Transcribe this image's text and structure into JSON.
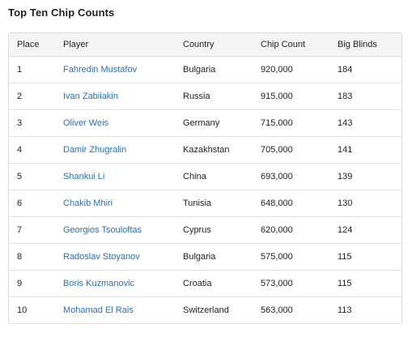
{
  "title": "Top Ten Chip Counts",
  "table": {
    "headers": {
      "place": "Place",
      "player": "Player",
      "country": "Country",
      "chips": "Chip Count",
      "bb": "Big Blinds"
    },
    "rows": [
      {
        "place": "1",
        "player": "Fahredin Mustafov",
        "country": "Bulgaria",
        "chips": "920,000",
        "bb": "184"
      },
      {
        "place": "2",
        "player": "Ivan Zabiiakin",
        "country": "Russia",
        "chips": "915,000",
        "bb": "183"
      },
      {
        "place": "3",
        "player": "Oliver Weis",
        "country": "Germany",
        "chips": "715,000",
        "bb": "143"
      },
      {
        "place": "4",
        "player": "Damir Zhugralin",
        "country": "Kazakhstan",
        "chips": "705,000",
        "bb": "141"
      },
      {
        "place": "5",
        "player": "Shankui Li",
        "country": "China",
        "chips": "693,000",
        "bb": "139"
      },
      {
        "place": "6",
        "player": "Chakib Mhiri",
        "country": "Tunisia",
        "chips": "648,000",
        "bb": "130"
      },
      {
        "place": "7",
        "player": "Georgios Tsouloftas",
        "country": "Cyprus",
        "chips": "620,000",
        "bb": "124"
      },
      {
        "place": "8",
        "player": "Radoslav Stoyanov",
        "country": "Bulgaria",
        "chips": "575,000",
        "bb": "115"
      },
      {
        "place": "9",
        "player": "Boris Kuzmanovic",
        "country": "Croatia",
        "chips": "573,000",
        "bb": "115"
      },
      {
        "place": "10",
        "player": "Mohamad El Rais",
        "country": "Switzerland",
        "chips": "563,000",
        "bb": "113"
      }
    ]
  },
  "colors": {
    "link": "#2a6fb0",
    "header_bg": "#f5f5f5",
    "border": "#dcdcdc"
  }
}
